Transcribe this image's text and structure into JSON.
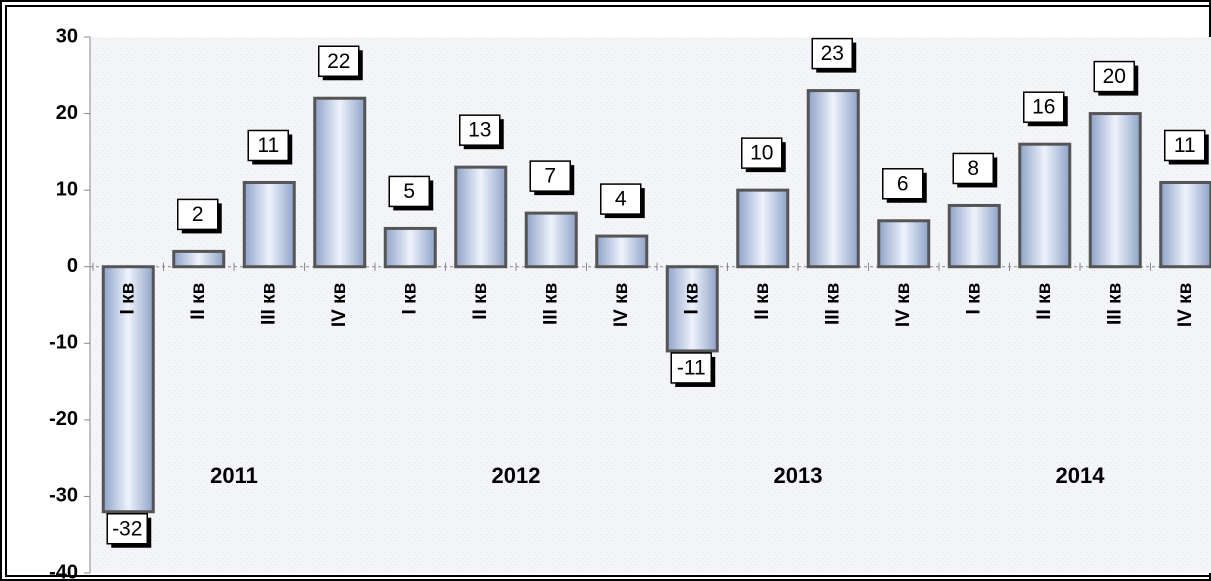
{
  "chart_data": {
    "type": "bar",
    "categories": [
      "I кв",
      "II кв",
      "III кв",
      "IV кв",
      "I кв",
      "II кв",
      "III кв",
      "IV кв",
      "I кв",
      "II кв",
      "III кв",
      "IV кв",
      "I кв",
      "II кв",
      "III кв",
      "IV кв"
    ],
    "values": [
      -32,
      2,
      11,
      22,
      5,
      13,
      7,
      4,
      -11,
      10,
      23,
      6,
      8,
      16,
      20,
      11
    ],
    "years": [
      "2011",
      "2012",
      "2013",
      "2014"
    ],
    "color": "#c9d6ee",
    "ylim": [
      -40,
      30
    ],
    "yticks": [
      -40,
      -30,
      -20,
      -10,
      0,
      10,
      20,
      30
    ]
  }
}
